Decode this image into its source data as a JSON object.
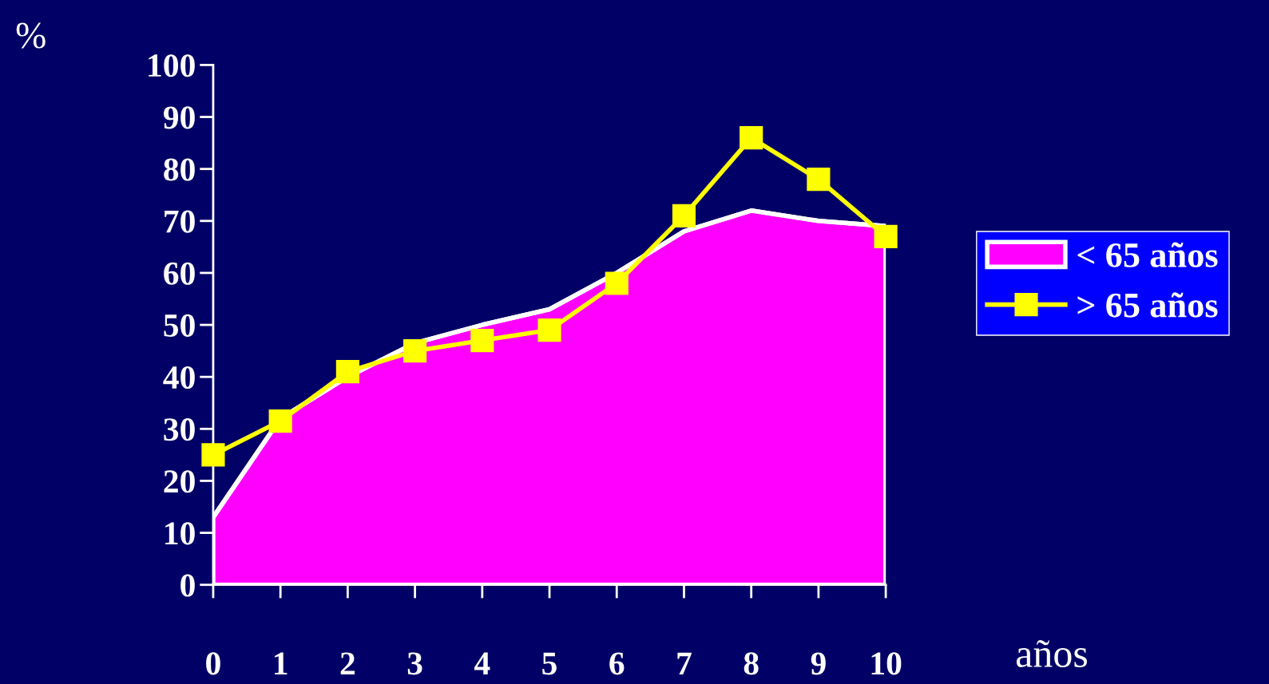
{
  "chart_data": {
    "type": "area",
    "ylabel": "%",
    "xlabel": "años",
    "x": [
      0,
      1,
      2,
      3,
      4,
      5,
      6,
      7,
      8,
      9,
      10
    ],
    "series": [
      {
        "name": "< 65 años",
        "color": "#ff00ff",
        "values": [
          13,
          32,
          40,
          46.5,
          50,
          53,
          60,
          68,
          72,
          70,
          69
        ]
      },
      {
        "name": "> 65 años",
        "type": "line",
        "color": "#ffff00",
        "marker": "square",
        "values": [
          25,
          31.5,
          41,
          45,
          47,
          49,
          58,
          71,
          86,
          78,
          67
        ]
      }
    ],
    "xlim": [
      0,
      10
    ],
    "xticks": [
      0,
      1,
      2,
      3,
      4,
      5,
      6,
      7,
      8,
      9,
      10
    ],
    "ylim": [
      0,
      100
    ],
    "yticks": [
      0,
      10,
      20,
      30,
      40,
      50,
      60,
      70,
      80,
      90,
      100
    ],
    "grid": false,
    "legend": "right"
  }
}
